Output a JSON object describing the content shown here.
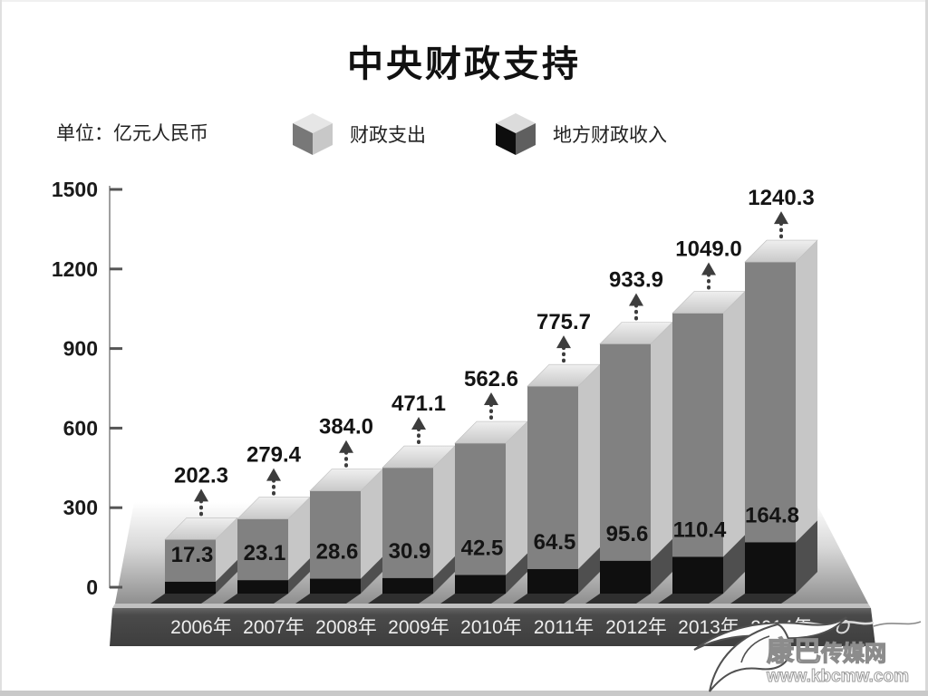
{
  "title": "中央财政支持",
  "unit_label": "单位：亿元人民币",
  "legend": {
    "items": [
      {
        "label": "财政支出",
        "front": "#787878",
        "side": "#c8c8c8",
        "top": "#e6e6e6"
      },
      {
        "label": "地方财政收入",
        "front": "#0d0d0d",
        "side": "#5f5f5f",
        "top": "#dcdcdc"
      }
    ]
  },
  "watermark": {
    "site_name_big": "康巴",
    "site_name_small": "传媒网",
    "site_url": "www.kbcmw.com"
  },
  "chart_data": {
    "type": "bar",
    "style": "3d-column-grayscale",
    "title": "中央财政支持",
    "unit": "亿元人民币",
    "categories": [
      "2006年",
      "2007年",
      "2008年",
      "2009年",
      "2010年",
      "2011年",
      "2012年",
      "2013年",
      "2014年"
    ],
    "series": [
      {
        "name": "财政支出",
        "values": [
          202.3,
          279.4,
          384.0,
          471.1,
          562.6,
          775.7,
          933.9,
          1049.0,
          1240.3
        ],
        "labels": [
          "202.3",
          "279.4",
          "384.0",
          "471.1",
          "562.6",
          "775.7",
          "933.9",
          "1049.0",
          "1240.3"
        ],
        "color_front": "#818181",
        "color_side": "#c6c6c6",
        "color_top_back": "#efefef",
        "color_top_front": "#c9c9c9"
      },
      {
        "name": "地方财政收入",
        "values": [
          17.3,
          23.1,
          28.6,
          30.9,
          42.5,
          64.5,
          95.6,
          110.4,
          164.8
        ],
        "labels": [
          "17.3",
          "23.1",
          "28.6",
          "30.9",
          "42.5",
          "64.5",
          "95.6",
          "110.4",
          "164.8"
        ],
        "color_front": "#0f0f0f",
        "color_side": "#4f4f4f"
      }
    ],
    "yticks": [
      0,
      300,
      600,
      900,
      1200,
      1500
    ],
    "ylim": [
      0,
      1500
    ],
    "grid": false,
    "legend_position": "top",
    "colors": {
      "axis": "#a0a0a0",
      "tick": "#555555",
      "tick_label": "#1a1a1a",
      "platform_band": "#474747",
      "platform_band_text": "#efefef",
      "value_label": "#141414",
      "arrow": "#3d3d3d",
      "shadow": "#2f2f2f"
    }
  }
}
